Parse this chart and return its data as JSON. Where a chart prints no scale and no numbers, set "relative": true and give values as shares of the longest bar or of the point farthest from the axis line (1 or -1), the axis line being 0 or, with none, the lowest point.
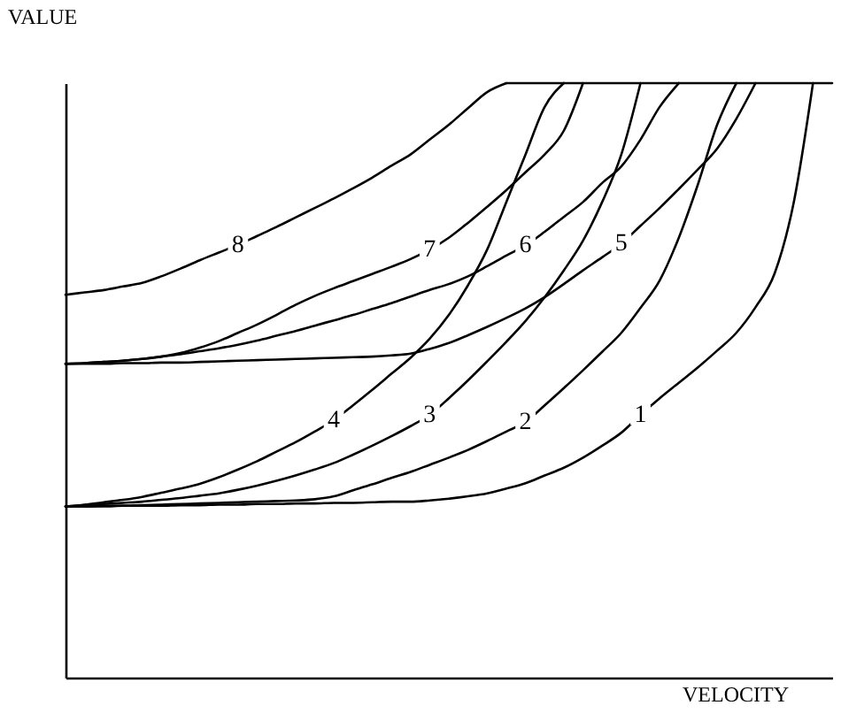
{
  "chart_data": {
    "type": "line",
    "relative": true,
    "xlabel": "VELOCITY",
    "ylabel": "VALUE",
    "categories": [
      null,
      null,
      null,
      null,
      null,
      null,
      null,
      null,
      null,
      null,
      null,
      null,
      null,
      null,
      null,
      null,
      null,
      null,
      null,
      null,
      null,
      null,
      null,
      null,
      null,
      null,
      null,
      null,
      null,
      null,
      null,
      null,
      null,
      null,
      null,
      null,
      null,
      null,
      null,
      null,
      null
    ],
    "series": [
      {
        "name": "1",
        "color": "#000000",
        "values": [
          0.288,
          0.288,
          0.288,
          0.289,
          0.289,
          0.289,
          0.29,
          0.29,
          0.291,
          0.291,
          0.292,
          0.292,
          0.293,
          0.293,
          0.294,
          0.294,
          0.295,
          0.296,
          0.296,
          0.298,
          0.301,
          0.305,
          0.31,
          0.318,
          0.327,
          0.34,
          0.353,
          0.37,
          0.39,
          0.412,
          0.442,
          0.47,
          0.496,
          0.522,
          0.55,
          0.58,
          0.623,
          0.68,
          0.8,
          1.0,
          null
        ]
      },
      {
        "name": "2",
        "color": "#000000",
        "values": [
          0.288,
          0.288,
          0.289,
          0.289,
          0.29,
          0.291,
          0.292,
          0.293,
          0.294,
          0.295,
          0.296,
          0.297,
          0.298,
          0.3,
          0.305,
          0.315,
          0.325,
          0.336,
          0.346,
          0.358,
          0.37,
          0.383,
          0.398,
          0.414,
          0.43,
          0.458,
          0.487,
          0.517,
          0.548,
          0.58,
          0.622,
          0.668,
          0.74,
          0.83,
          0.93,
          1.0,
          null,
          null,
          null,
          null,
          null
        ]
      },
      {
        "name": "3",
        "color": "#000000",
        "values": [
          0.288,
          0.29,
          0.292,
          0.294,
          0.296,
          0.299,
          0.302,
          0.306,
          0.31,
          0.316,
          0.323,
          0.331,
          0.34,
          0.35,
          0.361,
          0.375,
          0.39,
          0.406,
          0.423,
          0.442,
          0.47,
          0.5,
          0.532,
          0.565,
          0.6,
          0.64,
          0.685,
          0.735,
          0.8,
          0.88,
          1.0,
          null,
          null,
          null,
          null,
          null,
          null,
          null,
          null,
          null,
          null
        ]
      },
      {
        "name": "4",
        "color": "#000000",
        "values": [
          0.288,
          0.291,
          0.295,
          0.299,
          0.304,
          0.311,
          0.318,
          0.326,
          0.337,
          0.35,
          0.364,
          0.38,
          0.396,
          0.414,
          0.433,
          0.458,
          0.484,
          0.511,
          0.538,
          0.57,
          0.61,
          0.66,
          0.72,
          0.8,
          0.88,
          0.96,
          1.0,
          null,
          null,
          null,
          null,
          null,
          null,
          null,
          null,
          null,
          null,
          null,
          null,
          null,
          null
        ]
      },
      {
        "name": "5",
        "color": "#000000",
        "values": [
          0.528,
          0.528,
          0.528,
          0.529,
          0.529,
          0.53,
          0.53,
          0.531,
          0.532,
          0.533,
          0.534,
          0.535,
          0.536,
          0.537,
          0.538,
          0.539,
          0.54,
          0.542,
          0.545,
          0.553,
          0.563,
          0.576,
          0.59,
          0.605,
          0.621,
          0.64,
          0.662,
          0.685,
          0.707,
          0.73,
          0.76,
          0.79,
          0.822,
          0.855,
          0.89,
          0.94,
          1.0,
          null,
          null,
          null,
          null
        ]
      },
      {
        "name": "6",
        "color": "#000000",
        "values": [
          0.528,
          0.529,
          0.531,
          0.533,
          0.536,
          0.54,
          0.544,
          0.549,
          0.554,
          0.56,
          0.567,
          0.575,
          0.583,
          0.592,
          0.601,
          0.61,
          0.62,
          0.63,
          0.641,
          0.652,
          0.662,
          0.675,
          0.692,
          0.71,
          0.727,
          0.75,
          0.775,
          0.8,
          0.832,
          0.86,
          0.905,
          0.96,
          1.0,
          null,
          null,
          null,
          null,
          null,
          null,
          null,
          null
        ]
      },
      {
        "name": "7",
        "color": "#000000",
        "values": [
          0.528,
          0.529,
          0.531,
          0.533,
          0.536,
          0.54,
          0.546,
          0.555,
          0.566,
          0.58,
          0.594,
          0.61,
          0.627,
          0.642,
          0.655,
          0.667,
          0.679,
          0.691,
          0.704,
          0.72,
          0.74,
          0.765,
          0.792,
          0.82,
          0.85,
          0.88,
          0.92,
          1.0,
          null,
          null,
          null,
          null,
          null,
          null,
          null,
          null,
          null,
          null,
          null,
          null,
          null
        ]
      },
      {
        "name": "8",
        "color": "#000000",
        "values": [
          0.644,
          0.648,
          0.652,
          0.658,
          0.664,
          0.675,
          0.688,
          0.702,
          0.715,
          0.728,
          0.743,
          0.758,
          0.774,
          0.79,
          0.806,
          0.823,
          0.841,
          0.861,
          0.88,
          0.905,
          0.93,
          0.958,
          0.985,
          1.0,
          null,
          null,
          null,
          null,
          null,
          null,
          null,
          null,
          null,
          null,
          null,
          null,
          null,
          null,
          null,
          null,
          null
        ]
      },
      {
        "color": "#000000",
        "values": [
          null,
          null,
          null,
          null,
          null,
          null,
          null,
          null,
          null,
          null,
          null,
          null,
          null,
          null,
          null,
          null,
          null,
          null,
          null,
          null,
          null,
          null,
          null,
          1.0,
          1.0,
          1.0,
          1.0,
          1.0,
          1.0,
          1.0,
          1.0,
          1.0,
          1.0,
          1.0,
          1.0,
          1.0,
          1.0,
          1.0,
          1.0,
          1.0,
          1.0
        ]
      }
    ]
  }
}
